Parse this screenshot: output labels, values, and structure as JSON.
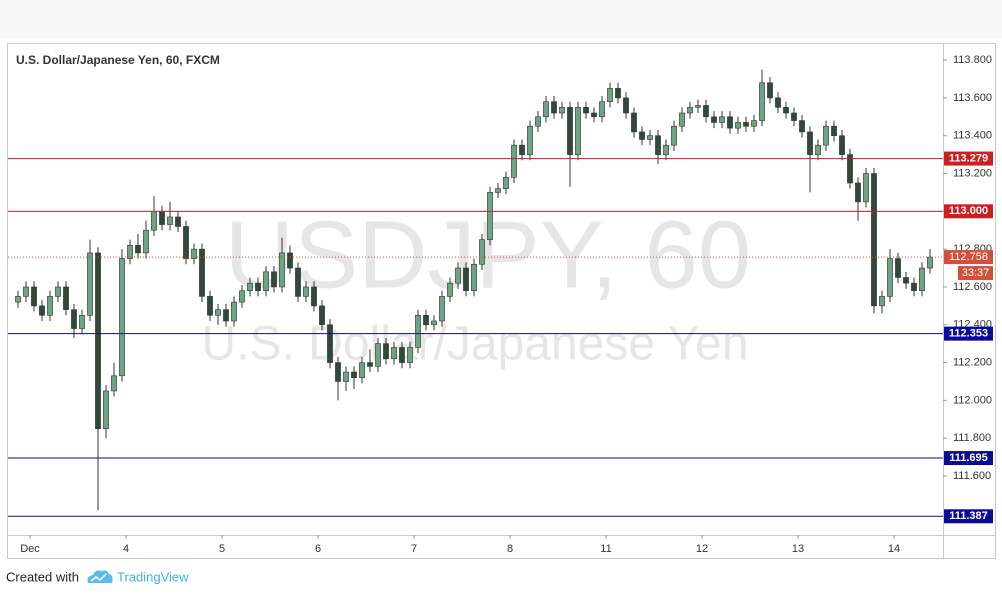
{
  "chart_data": {
    "type": "candlestick",
    "title": "U.S. Dollar/Japanese Yen, 60, FXCM",
    "watermark": {
      "symbol": "USDJPY, 60",
      "name": "U.S. Dollar/Japanese Yen"
    },
    "up_color": "#6ba583",
    "down_color": "#2f4a3a",
    "x": [
      -2,
      -1,
      0,
      1,
      2,
      3,
      4,
      5,
      6,
      7,
      8,
      9,
      10,
      11,
      12,
      13,
      14,
      15,
      16,
      17,
      18,
      19,
      20,
      21,
      22,
      23,
      24,
      25,
      26,
      27,
      28,
      29,
      30,
      31,
      32,
      33,
      34,
      35,
      36,
      37,
      38,
      39,
      40,
      41,
      42,
      43,
      44,
      45,
      46,
      47,
      48,
      49,
      50,
      51,
      52,
      53,
      54,
      55,
      56,
      57,
      58,
      59,
      60,
      61,
      62,
      63,
      64,
      65,
      66,
      67,
      68,
      69,
      70,
      71,
      72,
      73,
      74,
      75,
      76,
      77,
      78,
      79,
      80,
      81,
      82,
      83,
      84,
      85,
      86,
      87,
      88,
      89,
      90,
      91,
      92,
      93,
      94,
      95,
      96,
      97,
      98,
      99,
      100,
      101,
      102,
      103,
      104,
      105,
      106,
      107,
      108,
      109,
      110,
      111,
      112
    ],
    "open": [
      112.52,
      112.55,
      112.6,
      112.5,
      112.45,
      112.55,
      112.6,
      112.48,
      112.38,
      112.45,
      112.78,
      111.85,
      112.05,
      112.13,
      112.75,
      112.82,
      112.78,
      112.9,
      113.0,
      112.93,
      112.97,
      112.92,
      112.75,
      112.8,
      112.55,
      112.45,
      112.48,
      112.42,
      112.52,
      112.58,
      112.62,
      112.58,
      112.68,
      112.6,
      112.78,
      112.7,
      112.55,
      112.6,
      112.5,
      112.4,
      112.2,
      112.1,
      112.15,
      112.12,
      112.2,
      112.18,
      112.3,
      112.22,
      112.28,
      112.2,
      112.28,
      112.45,
      112.4,
      112.42,
      112.55,
      112.62,
      112.7,
      112.58,
      112.72,
      112.85,
      113.1,
      113.12,
      113.18,
      113.35,
      113.3,
      113.45,
      113.5,
      113.58,
      113.52,
      113.55,
      113.3,
      113.55,
      113.52,
      113.5,
      113.58,
      113.65,
      113.6,
      113.52,
      113.42,
      113.38,
      113.4,
      113.3,
      113.35,
      113.45,
      113.52,
      113.55,
      113.56,
      113.5,
      113.47,
      113.5,
      113.44,
      113.47,
      113.45,
      113.48,
      113.68,
      113.6,
      113.55,
      113.52,
      113.48,
      113.42,
      113.3,
      113.35,
      113.45,
      113.4,
      113.3,
      113.15,
      113.05,
      113.2,
      112.5,
      112.55,
      112.75,
      112.65,
      112.62,
      112.58,
      112.7
    ],
    "high": [
      112.58,
      112.63,
      112.63,
      112.53,
      112.58,
      112.63,
      112.63,
      112.51,
      112.48,
      112.85,
      112.81,
      112.08,
      112.2,
      112.8,
      112.85,
      112.88,
      112.95,
      113.08,
      113.03,
      113.05,
      113.0,
      112.95,
      112.83,
      112.83,
      112.58,
      112.51,
      112.51,
      112.55,
      112.61,
      112.65,
      112.65,
      112.71,
      112.71,
      112.86,
      112.82,
      112.73,
      112.63,
      112.63,
      112.53,
      112.43,
      112.23,
      112.18,
      112.18,
      112.23,
      112.27,
      112.33,
      112.33,
      112.31,
      112.31,
      112.31,
      112.48,
      112.48,
      112.45,
      112.58,
      112.65,
      112.73,
      112.73,
      112.75,
      112.88,
      113.13,
      113.15,
      113.21,
      113.38,
      113.38,
      113.48,
      113.53,
      113.61,
      113.61,
      113.58,
      113.58,
      113.58,
      113.58,
      113.55,
      113.61,
      113.68,
      113.68,
      113.63,
      113.55,
      113.45,
      113.43,
      113.43,
      113.38,
      113.48,
      113.55,
      113.58,
      113.59,
      113.59,
      113.53,
      113.53,
      113.53,
      113.5,
      113.5,
      113.51,
      113.75,
      113.71,
      113.63,
      113.58,
      113.55,
      113.51,
      113.45,
      113.38,
      113.48,
      113.48,
      113.43,
      113.33,
      113.18,
      113.23,
      113.23,
      112.58,
      112.8,
      112.78,
      112.68,
      112.65,
      112.73,
      112.8
    ],
    "low": [
      112.49,
      112.52,
      112.47,
      112.42,
      112.42,
      112.52,
      112.45,
      112.33,
      112.35,
      112.42,
      111.42,
      111.8,
      112.02,
      112.1,
      112.72,
      112.75,
      112.75,
      112.87,
      112.9,
      112.9,
      112.89,
      112.72,
      112.72,
      112.52,
      112.42,
      112.4,
      112.39,
      112.39,
      112.49,
      112.55,
      112.55,
      112.55,
      112.57,
      112.57,
      112.67,
      112.52,
      112.52,
      112.47,
      112.37,
      112.17,
      112.0,
      112.05,
      112.06,
      112.09,
      112.15,
      112.15,
      112.19,
      112.19,
      112.17,
      112.17,
      112.25,
      112.37,
      112.37,
      112.39,
      112.52,
      112.59,
      112.55,
      112.55,
      112.69,
      112.82,
      113.07,
      113.09,
      113.15,
      113.27,
      113.27,
      113.42,
      113.47,
      113.49,
      113.49,
      113.13,
      113.27,
      113.49,
      113.47,
      113.47,
      113.55,
      113.57,
      113.49,
      113.39,
      113.35,
      113.35,
      113.25,
      113.27,
      113.32,
      113.42,
      113.49,
      113.52,
      113.47,
      113.44,
      113.44,
      113.41,
      113.41,
      113.42,
      113.42,
      113.45,
      113.57,
      113.52,
      113.49,
      113.45,
      113.39,
      113.1,
      113.27,
      113.32,
      113.37,
      113.27,
      113.12,
      112.95,
      113.02,
      112.46,
      112.46,
      112.52,
      112.62,
      112.59,
      112.55,
      112.55,
      112.67
    ],
    "close": [
      112.55,
      112.6,
      112.5,
      112.45,
      112.55,
      112.6,
      112.48,
      112.38,
      112.45,
      112.78,
      111.85,
      112.05,
      112.13,
      112.75,
      112.82,
      112.78,
      112.9,
      113.0,
      112.93,
      112.97,
      112.92,
      112.75,
      112.8,
      112.55,
      112.45,
      112.48,
      112.42,
      112.52,
      112.58,
      112.62,
      112.58,
      112.68,
      112.6,
      112.78,
      112.7,
      112.55,
      112.6,
      112.5,
      112.4,
      112.2,
      112.1,
      112.15,
      112.12,
      112.2,
      112.18,
      112.3,
      112.22,
      112.28,
      112.2,
      112.28,
      112.45,
      112.4,
      112.42,
      112.55,
      112.62,
      112.7,
      112.58,
      112.72,
      112.85,
      113.1,
      113.12,
      113.18,
      113.35,
      113.3,
      113.45,
      113.5,
      113.58,
      113.52,
      113.55,
      113.3,
      113.55,
      113.52,
      113.5,
      113.58,
      113.65,
      113.6,
      113.52,
      113.42,
      113.38,
      113.4,
      113.3,
      113.35,
      113.45,
      113.52,
      113.55,
      113.56,
      113.5,
      113.47,
      113.5,
      113.44,
      113.47,
      113.45,
      113.48,
      113.68,
      113.6,
      113.55,
      113.52,
      113.48,
      113.42,
      113.3,
      113.35,
      113.45,
      113.4,
      113.3,
      113.15,
      113.05,
      113.2,
      112.5,
      112.55,
      112.75,
      112.65,
      112.62,
      112.58,
      112.7,
      112.758
    ],
    "xlim": [
      -2.75,
      114.125
    ],
    "xticks": [
      {
        "value": 0,
        "label": "Dec"
      },
      {
        "value": 12,
        "label": "4"
      },
      {
        "value": 24,
        "label": "5"
      },
      {
        "value": 36,
        "label": "6"
      },
      {
        "value": 48,
        "label": "7"
      },
      {
        "value": 60,
        "label": "8"
      },
      {
        "value": 72,
        "label": "11"
      },
      {
        "value": 84,
        "label": "12"
      },
      {
        "value": 96,
        "label": "13"
      },
      {
        "value": 108,
        "label": "14"
      }
    ],
    "ylim": [
      111.288,
      113.885
    ],
    "yticks": [
      {
        "value": 111.6,
        "label": "111.600"
      },
      {
        "value": 111.8,
        "label": "111.800"
      },
      {
        "value": 112.0,
        "label": "112.000"
      },
      {
        "value": 112.2,
        "label": "112.200"
      },
      {
        "value": 112.4,
        "label": "112.400"
      },
      {
        "value": 112.6,
        "label": "112.600"
      },
      {
        "value": 112.8,
        "label": "112.800"
      },
      {
        "value": 113.0,
        "label": "113.000"
      },
      {
        "value": 113.2,
        "label": "113.200"
      },
      {
        "value": 113.4,
        "label": "113.400"
      },
      {
        "value": 113.6,
        "label": "113.600"
      },
      {
        "value": 113.8,
        "label": "113.800"
      }
    ],
    "grid": false,
    "levels": [
      {
        "value": 113.279,
        "label": "113.279",
        "color": "#cc1f1f"
      },
      {
        "value": 113.0,
        "label": "113.000",
        "color": "#cc1f1f"
      },
      {
        "value": 112.353,
        "label": "112.353",
        "color": "#0a0a9a"
      },
      {
        "value": 111.695,
        "label": "111.695",
        "color": "#0a0a9a"
      },
      {
        "value": 111.387,
        "label": "111.387",
        "color": "#0a0a9a"
      }
    ],
    "last_price": {
      "value": 112.758,
      "label": "112.758",
      "color": "#d0503c",
      "countdown": "33:37"
    }
  },
  "footer": {
    "created": "Created with",
    "brand": "TradingView"
  }
}
